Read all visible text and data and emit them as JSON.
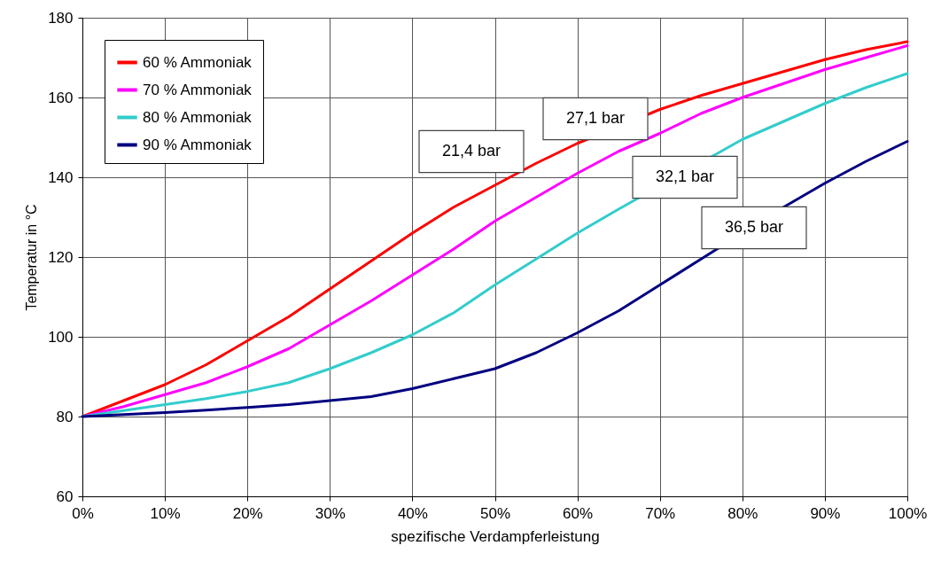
{
  "chart_data": {
    "type": "line",
    "xlabel": "spezifische Verdampferleistung",
    "ylabel": "Temperatur in °C",
    "x": [
      0,
      5,
      10,
      15,
      20,
      25,
      30,
      35,
      40,
      45,
      50,
      55,
      60,
      65,
      70,
      75,
      80,
      85,
      90,
      95,
      100
    ],
    "xlim": [
      0,
      100
    ],
    "xticks": [
      {
        "value": 0,
        "label": "0%"
      },
      {
        "value": 10,
        "label": "10%"
      },
      {
        "value": 20,
        "label": "20%"
      },
      {
        "value": 30,
        "label": "30%"
      },
      {
        "value": 40,
        "label": "40%"
      },
      {
        "value": 50,
        "label": "50%"
      },
      {
        "value": 60,
        "label": "60%"
      },
      {
        "value": 70,
        "label": "70%"
      },
      {
        "value": 80,
        "label": "80%"
      },
      {
        "value": 90,
        "label": "90%"
      },
      {
        "value": 100,
        "label": "100%"
      }
    ],
    "ylim": [
      60,
      180
    ],
    "yticks": [
      60,
      80,
      100,
      120,
      140,
      160,
      180
    ],
    "grid": true,
    "legend": "top left",
    "series": [
      {
        "name": "60 % Ammoniak",
        "color": "#ff0000",
        "x": [
          0,
          5,
          10,
          15,
          20,
          25,
          30,
          35,
          40,
          45,
          50,
          55,
          60,
          70,
          75,
          80,
          85,
          90,
          95,
          100
        ],
        "values": [
          80,
          84,
          88,
          93,
          99,
          105,
          112,
          119,
          126,
          132.5,
          138,
          143.5,
          148.5,
          157,
          160.5,
          163.5,
          166.5,
          169.5,
          172,
          174
        ]
      },
      {
        "name": "70 % Ammoniak",
        "color": "#ff00ff",
        "values": [
          80,
          82.5,
          85.5,
          88.5,
          92.5,
          97,
          103,
          109,
          115.5,
          122,
          129,
          135,
          141,
          146.5,
          151,
          156,
          160,
          163.5,
          167,
          170,
          173
        ]
      },
      {
        "name": "80 % Ammoniak",
        "color": "#33cccc",
        "x": [
          0,
          5,
          10,
          15,
          20,
          25,
          30,
          35,
          40,
          45,
          50,
          55,
          60,
          65,
          80,
          85,
          90,
          95,
          100
        ],
        "values": [
          80,
          81.5,
          83,
          84.5,
          86.3,
          88.5,
          92,
          96,
          100.5,
          106,
          113,
          119.5,
          126,
          132,
          149.5,
          154,
          158.5,
          162.5,
          166
        ]
      },
      {
        "name": "90 % Ammoniak",
        "color": "#000080",
        "x": [
          0,
          5,
          10,
          15,
          20,
          25,
          30,
          35,
          40,
          45,
          50,
          55,
          60,
          65,
          70,
          75,
          85,
          90,
          95,
          100
        ],
        "values": [
          80,
          80.5,
          81,
          81.6,
          82.3,
          83,
          84,
          85,
          87,
          89.5,
          92,
          96,
          101,
          106.5,
          113,
          119.5,
          132.5,
          138.5,
          144,
          149
        ]
      }
    ],
    "annotations": [
      "21,4 bar",
      "27,1 bar",
      "32,1 bar",
      "36,5 bar"
    ]
  }
}
